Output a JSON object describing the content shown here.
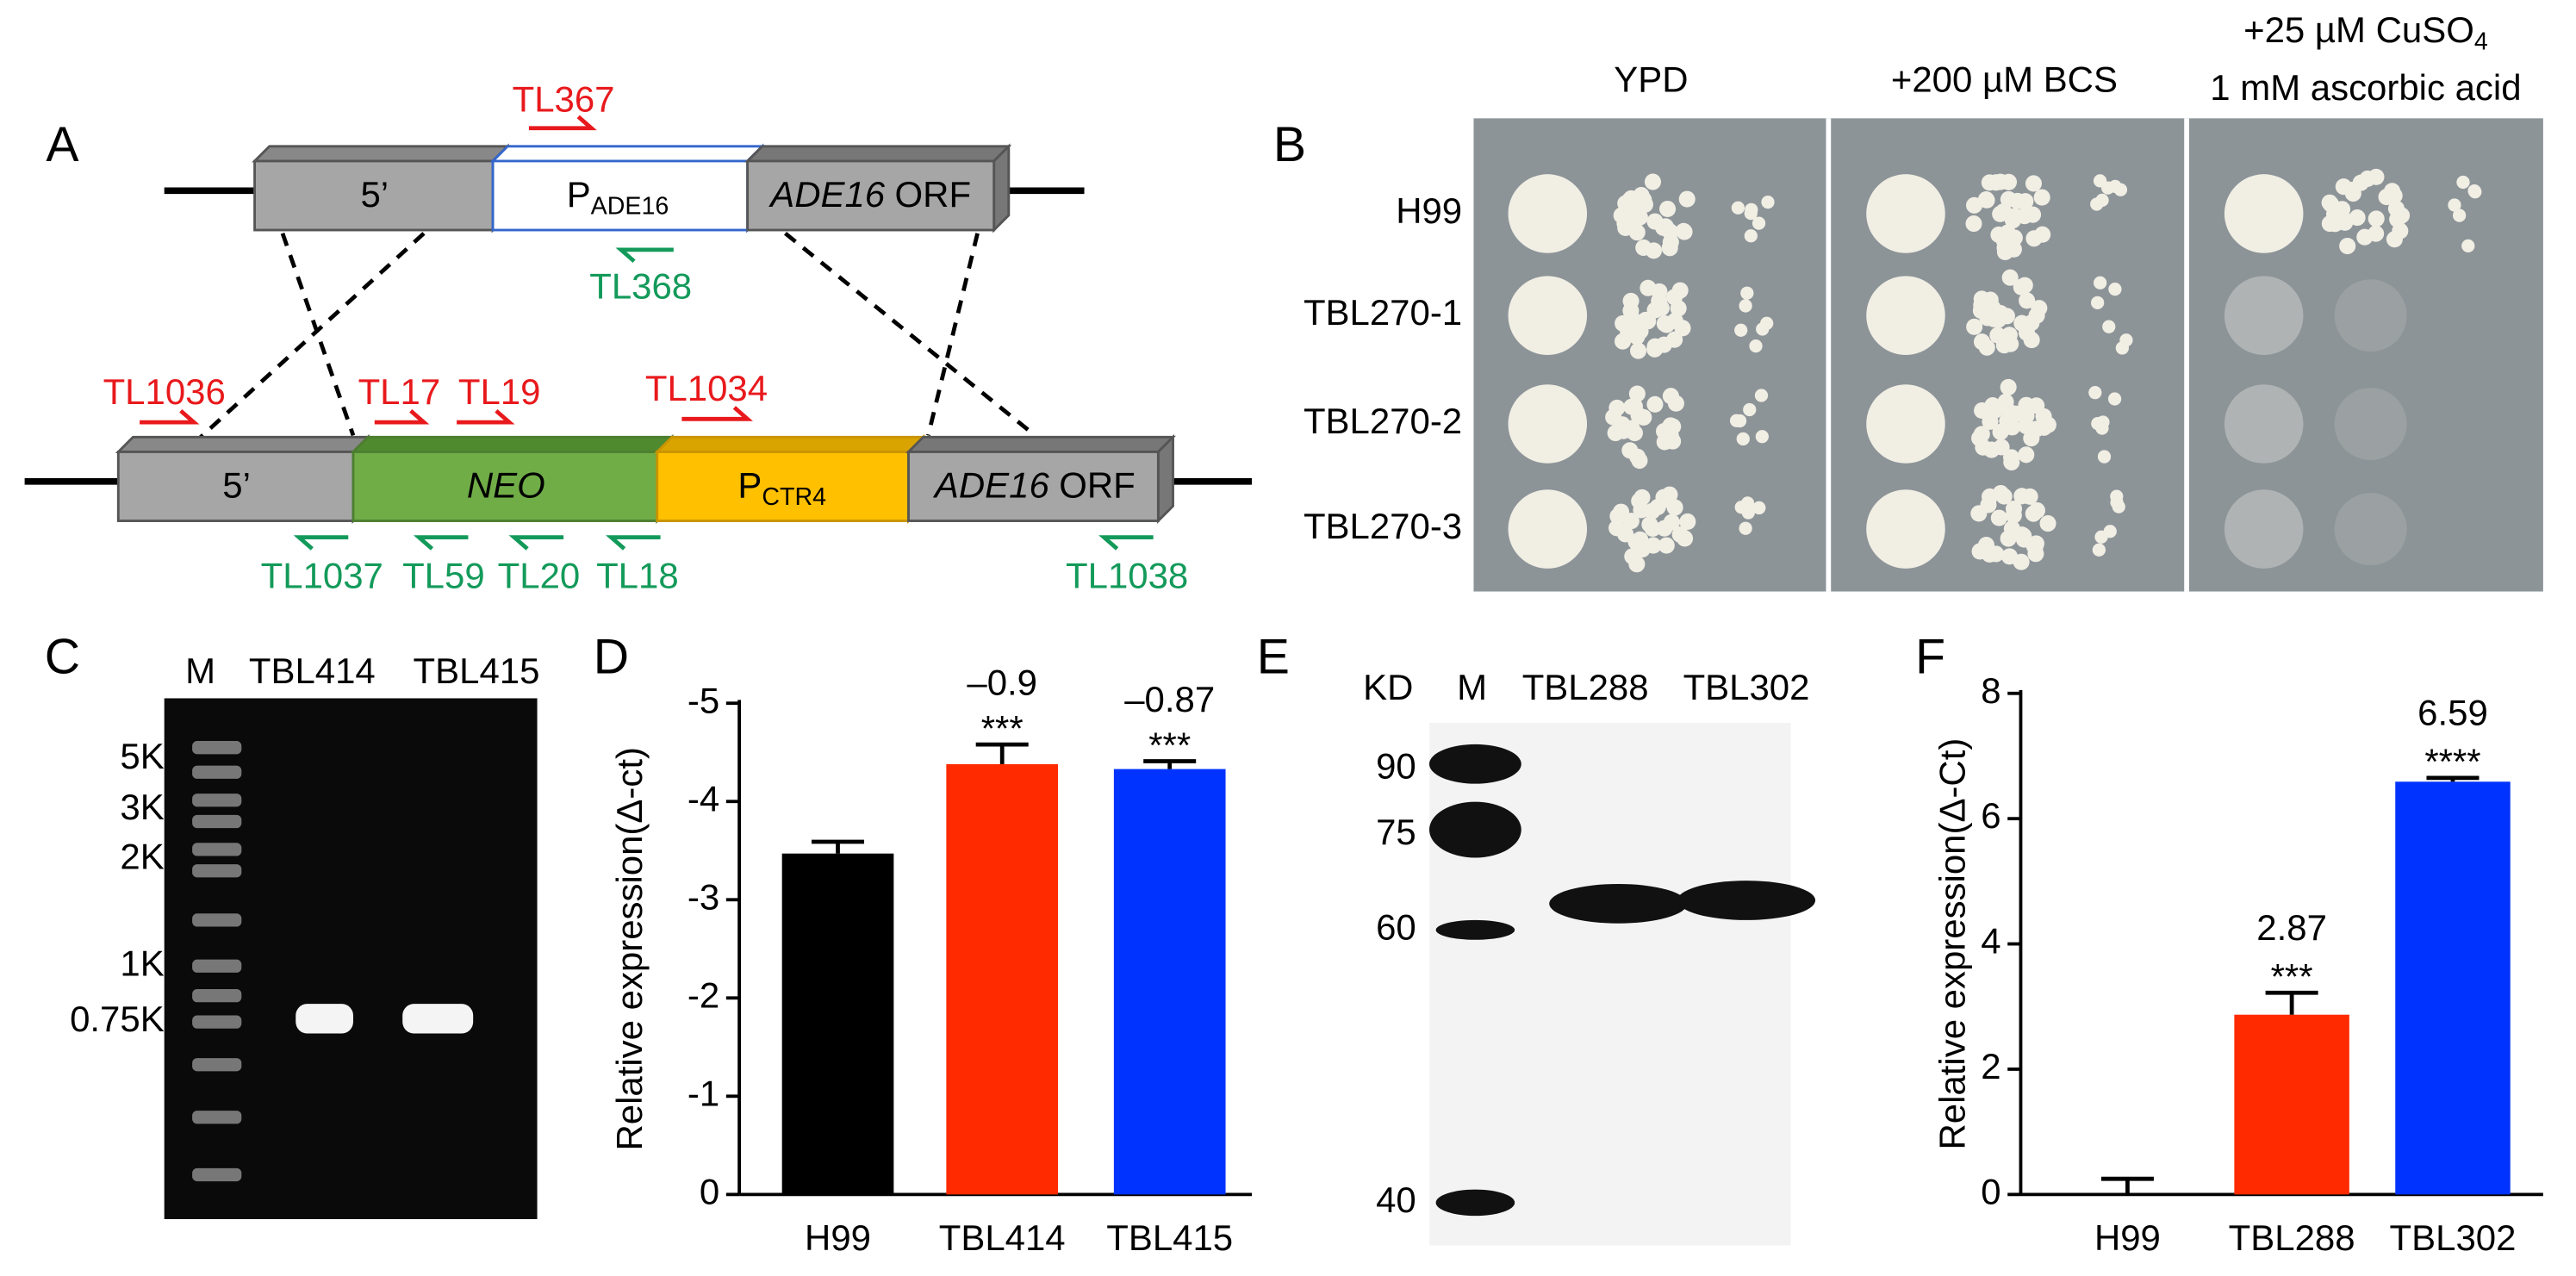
{
  "panel_labels": [
    "A",
    "B",
    "C",
    "D",
    "E",
    "F"
  ],
  "construct": {
    "wild_type": {
      "five": "5’",
      "promoter": {
        "main": "P",
        "sub": "ADE16"
      },
      "orf": {
        "gene": "ADE16",
        "rest": "ORF"
      }
    },
    "mutant": {
      "five": "5’",
      "marker": "NEO",
      "promoter": {
        "main": "P",
        "sub": "CTR4"
      },
      "orf": {
        "gene": "ADE16",
        "rest": "ORF"
      }
    },
    "forward_primers": [
      "TL367",
      "TL1036",
      "TL17",
      "TL19",
      "TL1034"
    ],
    "reverse_primers": [
      "TL368",
      "TL1037",
      "TL59",
      "TL20",
      "TL18",
      "TL1038"
    ]
  },
  "spot_assay": {
    "conditions": [
      "YPD",
      "+200 µM BCS",
      {
        "main": "+25 µM CuSO",
        "sub": "4",
        "line2": "1 mM ascorbic acid"
      }
    ],
    "strains": [
      "H99",
      "TBL270-1",
      "TBL270-2",
      "TBL270-3"
    ]
  },
  "pcr_gel": {
    "lanes": [
      "M",
      "TBL414",
      "TBL415"
    ],
    "markers": [
      "5K",
      "3K",
      "2K",
      "1K",
      "0.75K"
    ]
  },
  "western_blot": {
    "unit": "KD",
    "lanes": [
      "M",
      "TBL288",
      "TBL302"
    ],
    "markers": [
      "90",
      "75",
      "60",
      "40"
    ]
  },
  "chart_data": [
    {
      "type": "bar",
      "ylabel": "Relative expression(Δ-ct)",
      "categories": [
        "H99",
        "TBL414",
        "TBL415"
      ],
      "values": [
        -3.47,
        -4.38,
        -4.33
      ],
      "errors": [
        0.12,
        0.2,
        0.08
      ],
      "colors": [
        "#000000",
        "#ff2a00",
        "#0033ff"
      ],
      "diff_labels": [
        null,
        "–0.9",
        "–0.87"
      ],
      "significance": [
        null,
        "***",
        "***"
      ],
      "ylim": [
        0,
        -5
      ],
      "yticks": [
        0,
        -1,
        -2,
        -3,
        -4,
        -5
      ]
    },
    {
      "type": "bar",
      "ylabel": "Relative expression(Δ-Ct)",
      "categories": [
        "H99",
        "TBL288",
        "TBL302"
      ],
      "values": [
        0,
        2.87,
        6.59
      ],
      "errors": [
        0.25,
        0.35,
        0.06
      ],
      "colors": [
        "#000000",
        "#ff2a00",
        "#0033ff"
      ],
      "value_labels": [
        null,
        "2.87",
        "6.59"
      ],
      "significance": [
        null,
        "***",
        "****"
      ],
      "ylim": [
        0,
        8
      ],
      "yticks": [
        0,
        2,
        4,
        6,
        8
      ]
    }
  ]
}
